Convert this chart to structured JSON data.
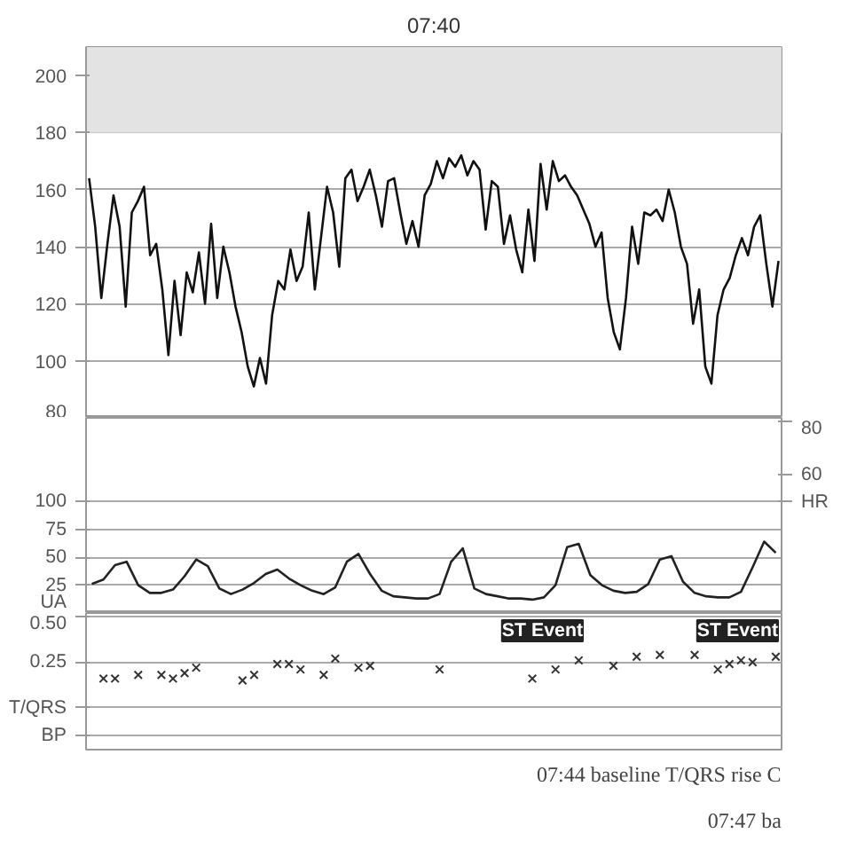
{
  "chart_data": [
    {
      "type": "line",
      "categories": [
        null,
        null,
        null,
        null,
        null,
        null,
        null,
        null,
        null,
        null,
        null,
        null,
        null,
        null,
        null,
        null,
        null,
        null,
        null,
        null,
        null,
        null,
        null,
        null,
        null,
        null,
        null,
        null,
        null,
        null,
        null,
        null,
        null,
        null,
        null,
        null,
        null,
        null,
        null,
        null,
        null,
        null,
        null,
        null,
        null,
        null,
        null,
        null,
        null,
        null,
        null,
        null,
        null,
        null,
        null,
        null,
        null,
        null,
        null,
        null,
        null,
        null,
        null,
        null,
        null,
        null,
        null,
        null,
        null,
        null,
        null,
        null,
        null,
        null,
        null,
        null,
        null,
        null,
        null,
        null,
        null,
        null,
        null,
        null,
        null,
        null,
        null,
        null,
        null,
        null,
        null,
        null,
        null,
        null,
        null,
        null,
        null,
        null,
        null,
        null,
        null,
        null,
        null,
        null,
        null,
        null,
        null,
        null,
        null,
        null,
        null,
        null,
        null,
        null
      ],
      "series": [
        {
          "color": "#111111",
          "values": [
            164,
            147,
            122,
            141,
            158,
            147,
            119,
            152,
            156,
            161,
            137,
            141,
            125,
            102,
            128,
            109,
            131,
            124,
            138,
            120,
            148,
            122,
            140,
            131,
            119,
            110,
            98,
            91,
            101,
            92,
            116,
            128,
            125,
            139,
            128,
            133,
            152,
            125,
            143,
            161,
            152,
            133,
            164,
            167,
            156,
            161,
            167,
            158,
            147,
            163,
            164,
            152,
            141,
            149,
            140,
            158,
            162,
            170,
            164,
            171,
            168,
            172,
            165,
            170,
            167,
            146,
            163,
            161,
            141,
            151,
            139,
            131,
            153,
            135,
            169,
            153,
            170,
            163,
            165,
            161,
            158,
            153,
            148,
            140,
            145,
            122,
            110,
            104,
            122,
            147,
            134,
            152,
            151,
            153,
            149,
            160,
            152,
            140,
            134,
            113,
            125,
            98,
            92,
            116,
            125,
            129,
            137,
            143,
            137,
            147,
            151,
            134,
            119,
            135
          ]
        }
      ],
      "ylim": [
        80,
        210
      ],
      "yticks": [
        80,
        100,
        120,
        140,
        160,
        180,
        200
      ],
      "bands": [
        {
          "axis": "y",
          "from": 180,
          "to": 210,
          "color": "#e3e3e3"
        }
      ],
      "annotations": [
        "07:40"
      ],
      "grid": "y",
      "line_style": "solid"
    },
    {
      "type": "line",
      "categories": [
        null,
        null,
        null,
        null,
        null,
        null,
        null,
        null,
        null,
        null,
        null,
        null,
        null,
        null,
        null,
        null,
        null,
        null,
        null,
        null,
        null,
        null,
        null,
        null,
        null,
        null,
        null,
        null,
        null,
        null,
        null,
        null,
        null,
        null,
        null,
        null,
        null,
        null,
        null,
        null,
        null,
        null,
        null,
        null,
        null,
        null,
        null,
        null,
        null,
        null,
        null,
        null,
        null,
        null,
        null,
        null,
        null,
        null,
        null,
        null
      ],
      "series": [
        {
          "color": "#222222",
          "values": [
            26,
            30,
            43,
            46,
            25,
            18,
            18,
            21,
            33,
            48,
            42,
            22,
            17,
            21,
            27,
            35,
            39,
            31,
            25,
            20,
            17,
            23,
            46,
            53,
            35,
            20,
            15,
            14,
            13,
            13,
            17,
            46,
            58,
            22,
            17,
            15,
            13,
            13,
            12,
            14,
            25,
            59,
            62,
            34,
            25,
            20,
            18,
            19,
            26,
            48,
            51,
            28,
            18,
            15,
            14,
            14,
            19,
            41,
            64,
            54
          ]
        }
      ],
      "ylim": [
        0,
        175
      ],
      "yticks": [
        {
          "value": 0,
          "label": "UA"
        },
        25,
        50,
        75,
        100
      ],
      "y2lim": [
        9,
        81
      ],
      "y2ticks": [
        {
          "value": 50,
          "label": "HR"
        },
        60,
        80
      ],
      "grid": "y",
      "line_style": "solid"
    },
    {
      "type": "scatter",
      "categories": [
        null,
        null,
        null,
        null,
        null,
        null,
        null,
        null,
        null,
        null,
        null,
        null,
        null,
        null,
        null,
        null,
        null,
        null,
        null,
        null,
        null,
        null,
        null,
        null,
        null,
        null,
        null,
        null,
        null,
        null,
        null,
        null,
        null,
        null,
        null,
        null,
        null,
        null,
        null,
        null,
        null,
        null,
        null,
        null,
        null,
        null,
        null,
        null,
        null,
        null,
        null,
        null,
        null,
        null,
        null,
        null,
        null,
        null,
        null,
        null
      ],
      "series": [
        {
          "color": "#333333",
          "values": [
            null,
            0.16,
            0.16,
            null,
            0.18,
            null,
            0.18,
            0.16,
            0.19,
            0.22,
            null,
            null,
            null,
            0.15,
            0.18,
            null,
            0.24,
            0.24,
            0.21,
            null,
            0.18,
            0.27,
            null,
            0.22,
            0.23,
            null,
            null,
            null,
            null,
            null,
            0.21,
            null,
            null,
            null,
            null,
            null,
            null,
            null,
            0.16,
            null,
            0.21,
            null,
            0.26,
            null,
            null,
            0.23,
            null,
            0.28,
            null,
            0.29,
            null,
            null,
            0.29,
            null,
            0.21,
            0.24,
            0.26,
            0.25,
            null,
            0.28
          ]
        }
      ],
      "ylim": [
        -0.23,
        0.52
      ],
      "yticks": [
        {
          "value": 0.5,
          "label": "0.50"
        },
        0.25,
        {
          "value": 0,
          "label": "T/QRS"
        },
        {
          "value": -0.15,
          "label": "BP"
        }
      ],
      "annotations": [
        "ST Event",
        "ST Event",
        "07:44 baseline T/QRS rise C",
        "07:47 ba"
      ],
      "grid": "y",
      "marker": "cross"
    }
  ]
}
